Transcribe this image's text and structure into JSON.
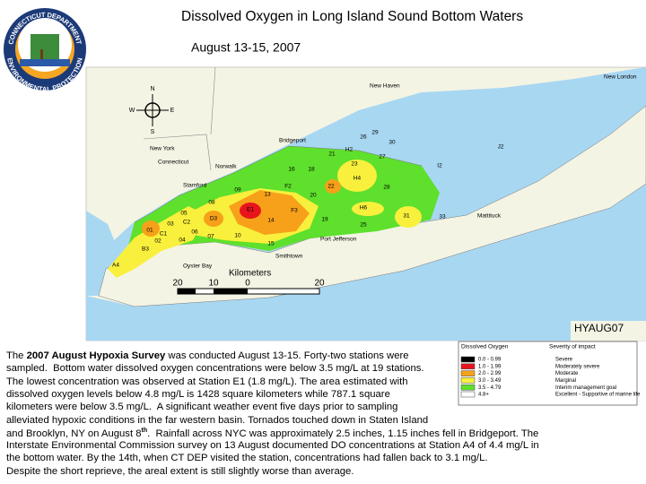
{
  "header": {
    "title": "Dissolved Oxygen in Long Island Sound Bottom Waters",
    "date": "August 13-15, 2007"
  },
  "logo": {
    "top_text": "CONNECTICUT DEPARTMENT",
    "bottom_text": "ENVIRONMENTAL PROTECTION"
  },
  "map": {
    "compass": [
      "N",
      "E",
      "S",
      "W"
    ],
    "places": [
      "New Haven",
      "New London",
      "Bridgeport",
      "New York",
      "Connecticut",
      "Norwalk",
      "Stamford",
      "Mattituck",
      "Port Jefferson",
      "Smithtown",
      "Oyster Bay"
    ],
    "stations": [
      "26",
      "29",
      "30",
      "H2",
      "21",
      "J2",
      "I2",
      "23",
      "27",
      "16",
      "18",
      "H4",
      "F2",
      "22",
      "28",
      "09",
      "13",
      "20",
      "08",
      "E1",
      "F3",
      "H6",
      "05",
      "D3",
      "14",
      "19",
      "31",
      "33",
      "03",
      "C2",
      "25",
      "01",
      "C1",
      "06",
      "07",
      "10",
      "02",
      "04",
      "15",
      "B3",
      "A4"
    ],
    "scale": {
      "unit_label": "Kilometers",
      "ticks": [
        "20",
        "10",
        "0",
        "20"
      ]
    },
    "code": "HYAUG07"
  },
  "legend": {
    "headers": [
      "Dissolved Oxygen",
      "Severity of impact"
    ],
    "rows": [
      {
        "range": "0.0 - 0.99",
        "severity": "Severe",
        "color": "#000000"
      },
      {
        "range": "1.0 - 1.99",
        "severity": "Moderately severe",
        "color": "#e8141c"
      },
      {
        "range": "2.0 - 2.99",
        "severity": "Moderate",
        "color": "#f7a11a"
      },
      {
        "range": "3.0 - 3.49",
        "severity": "Marginal",
        "color": "#f8f03c"
      },
      {
        "range": "3.5 - 4.79",
        "severity": "Interim management goal",
        "color": "#5ee02c"
      },
      {
        "range": "4.8+",
        "severity": "Excellent - Supportive of marine life",
        "color": "#ffffff"
      }
    ]
  },
  "description": {
    "lines": [
      [
        {
          "text": "The "
        },
        {
          "text": "2007 August Hypoxia Survey",
          "style": "bold"
        },
        {
          "text": " was conducted August 13-15. Forty-two stations were"
        }
      ],
      [
        {
          "text": "sampled.  Bottom water dissolved oxygen concentrations were below 3.5 mg/L at 19 stations."
        }
      ],
      [
        {
          "text": "The lowest concentration was observed at Station E1 (1.8 mg/L). The area estimated with"
        }
      ],
      [
        {
          "text": "dissolved oxygen levels below 4.8 mg/L is 1428 square kilometers while 787.1 square"
        }
      ],
      [
        {
          "text": "kilometers were below 3.5 mg/L.  A significant weather event five days prior to sampling"
        }
      ],
      [
        {
          "text": "alleviated hypoxic conditions in the far western basin. Tornados touched down in Staten Island"
        }
      ],
      [
        {
          "text": "and Brooklyn, NY on August 8"
        },
        {
          "text": "th",
          "style": "sup"
        },
        {
          "text": ".  Rainfall across NYC was approximately 2.5 inches, 1.15 inches fell in Bridgeport. The"
        }
      ],
      [
        {
          "text": "Interstate Environmental Commission survey on 13 August documented DO concentrations at Station A4 of 4.4 mg/L in"
        }
      ],
      [
        {
          "text": "the bottom water. By the 14th, when CT DEP visited the station, concentrations had fallen back to 3.1 mg/L."
        }
      ],
      [
        {
          "text": "Despite the short reprieve, the areal extent is still slightly worse than average."
        }
      ]
    ]
  }
}
